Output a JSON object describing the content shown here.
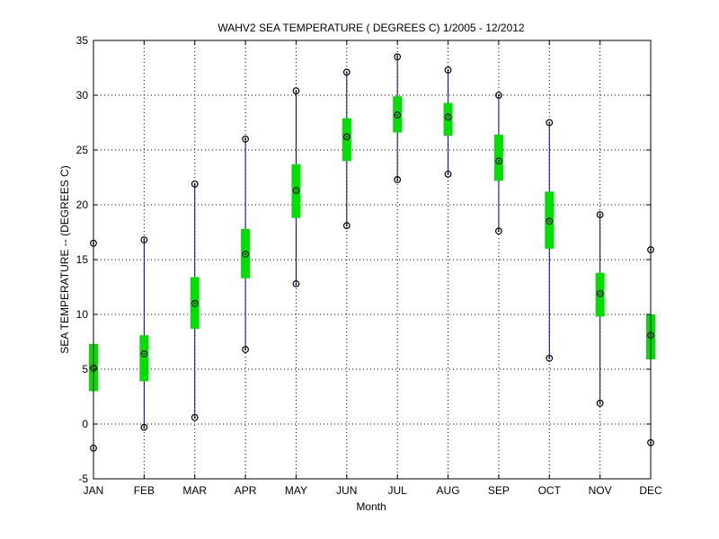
{
  "chart_data": {
    "type": "box",
    "title": "WAHV2  SEA TEMPERATURE ( DEGREES C) 1/2005 - 12/2012",
    "xlabel": "Month",
    "ylabel": "SEA TEMPERATURE -- (DEGREES C)",
    "ylim": [
      -5,
      35
    ],
    "yticks": [
      -5,
      0,
      5,
      10,
      15,
      20,
      25,
      30,
      35
    ],
    "grid": true,
    "categories": [
      "JAN",
      "FEB",
      "MAR",
      "APR",
      "MAY",
      "JUN",
      "JUL",
      "AUG",
      "SEP",
      "OCT",
      "NOV",
      "DEC"
    ],
    "min": [
      -2.2,
      -0.3,
      0.6,
      6.8,
      12.8,
      18.1,
      22.3,
      22.8,
      17.6,
      6.0,
      1.9,
      -1.7
    ],
    "q1": [
      3.0,
      3.9,
      8.7,
      13.3,
      18.8,
      24.0,
      26.6,
      26.3,
      22.2,
      16.0,
      9.8,
      5.9
    ],
    "median": [
      5.1,
      6.4,
      11.0,
      15.5,
      21.3,
      26.2,
      28.2,
      28.0,
      24.0,
      18.5,
      11.9,
      8.1
    ],
    "q3": [
      7.3,
      8.1,
      13.4,
      17.8,
      23.7,
      27.9,
      29.9,
      29.3,
      26.4,
      21.2,
      13.8,
      10.0
    ],
    "max": [
      16.5,
      16.8,
      21.9,
      26.0,
      30.4,
      32.1,
      33.5,
      32.3,
      30.0,
      27.5,
      19.1,
      15.9
    ],
    "colors": {
      "whisker": "#00008b",
      "box": "#00e000",
      "marker": "#000000",
      "grid": "#000000"
    }
  }
}
